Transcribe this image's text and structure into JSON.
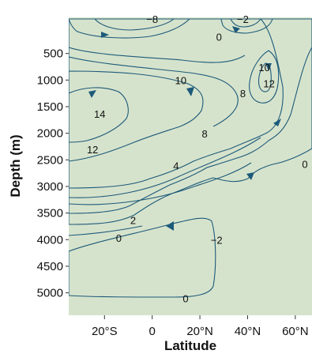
{
  "chart_data": {
    "type": "contour",
    "xlabel": "Latitude",
    "ylabel": "Depth (m)",
    "x_ticks": [
      "20°S",
      "0",
      "20°N",
      "40°N",
      "60°N"
    ],
    "x_tick_values": [
      -20,
      0,
      20,
      40,
      60
    ],
    "xlim": [
      -35,
      67
    ],
    "y_ticks": [
      "500",
      "1000",
      "1500",
      "2000",
      "2500",
      "3000",
      "3500",
      "4000",
      "4500",
      "5000"
    ],
    "y_tick_values": [
      500,
      1000,
      1500,
      2000,
      2500,
      3000,
      3500,
      4000,
      4500,
      5000
    ],
    "ylim": [
      0,
      5600
    ],
    "contour_levels": [
      {
        "label": "−8",
        "lat": 0,
        "depth": -130
      },
      {
        "label": "−2",
        "lat": 38,
        "depth": -130
      },
      {
        "label": "0",
        "lat": 28,
        "depth": 200
      },
      {
        "label": "10",
        "lat": 47,
        "depth": 770
      },
      {
        "label": "12",
        "lat": 49,
        "depth": 1080
      },
      {
        "label": "10",
        "lat": 12,
        "depth": 1020
      },
      {
        "label": "8",
        "lat": 38,
        "depth": 1260
      },
      {
        "label": "14",
        "lat": -22,
        "depth": 1650
      },
      {
        "label": "12",
        "lat": -25,
        "depth": 2320
      },
      {
        "label": "8",
        "lat": 22,
        "depth": 2020
      },
      {
        "label": "4",
        "lat": 10,
        "depth": 2620
      },
      {
        "label": "0",
        "lat": 64,
        "depth": 2590
      },
      {
        "label": "2",
        "lat": -8,
        "depth": 3650
      },
      {
        "label": "0",
        "lat": -14,
        "depth": 3980
      },
      {
        "label": "−2",
        "lat": 27,
        "depth": 4020
      },
      {
        "label": "0",
        "lat": 14,
        "depth": 5120
      }
    ],
    "fill_colors": [
      "#edf3f6",
      "#d5e6ef",
      "#b7d6e6",
      "#95c4dc",
      "#73b0d1",
      "#5c9fc6",
      "#e8ecd8",
      "#d6e3cc"
    ],
    "line_color": "#1d5a7a"
  }
}
